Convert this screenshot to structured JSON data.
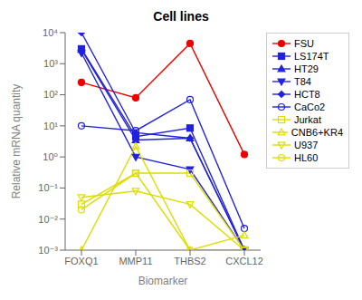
{
  "chart_data": {
    "type": "line",
    "title": "Cell lines",
    "xlabel": "Biomarker",
    "ylabel": "Relative mRNA quantity",
    "categories": [
      "FOXQ1",
      "MMP11",
      "THBS2",
      "CXCL12"
    ],
    "log": "y",
    "grid": false,
    "legend": "right",
    "ylim": [
      0.001,
      10000
    ],
    "yticks": [
      {
        "value": 0.001,
        "label": "10⁻³"
      },
      {
        "value": 0.01,
        "label": "10⁻²"
      },
      {
        "value": 0.1,
        "label": "10⁻¹"
      },
      {
        "value": 1,
        "label": "10⁰"
      },
      {
        "value": 10,
        "label": "10¹"
      },
      {
        "value": 100,
        "label": "10²"
      },
      {
        "value": 1000,
        "label": "10³"
      },
      {
        "value": 10000,
        "label": "10⁴"
      }
    ],
    "series": [
      {
        "name": "FSU",
        "color": "#EE0000",
        "marker": "circle",
        "values": [
          250,
          80,
          4500,
          1.2
        ]
      },
      {
        "name": "LS174T",
        "color": "#2222DD",
        "marker": "square",
        "values": [
          3000,
          4.5,
          8.5,
          0.001
        ]
      },
      {
        "name": "HT29",
        "color": "#2222DD",
        "marker": "triangle-up",
        "values": [
          2800,
          3.5,
          4.0,
          0.001
        ]
      },
      {
        "name": "T84",
        "color": "#2222DD",
        "marker": "triangle-down",
        "values": [
          2200,
          1.0,
          0.4,
          0.001
        ]
      },
      {
        "name": "HCT8",
        "color": "#2222DD",
        "marker": "diamond",
        "values": [
          10000,
          6.0,
          4.0,
          0.001
        ]
      },
      {
        "name": "CaCo2",
        "color": "#2222DD",
        "marker": "circle-open",
        "values": [
          10,
          7.0,
          70,
          0.005
        ]
      },
      {
        "name": "Jurkat",
        "color": "#DDDD00",
        "marker": "square-open",
        "values": [
          0.03,
          0.3,
          0.3,
          0.001
        ]
      },
      {
        "name": "CNB6+KR4",
        "color": "#DDDD00",
        "marker": "triangle-up-open",
        "values": [
          0.001,
          2.2,
          0.001,
          0.003
        ]
      },
      {
        "name": "U937",
        "color": "#DDDD00",
        "marker": "triangle-down-open",
        "values": [
          0.05,
          0.08,
          0.03,
          0.001
        ]
      },
      {
        "name": "HL60",
        "color": "#DDDD00",
        "marker": "circle-open",
        "values": [
          0.02,
          0.3,
          0.001,
          0.001
        ]
      }
    ]
  }
}
